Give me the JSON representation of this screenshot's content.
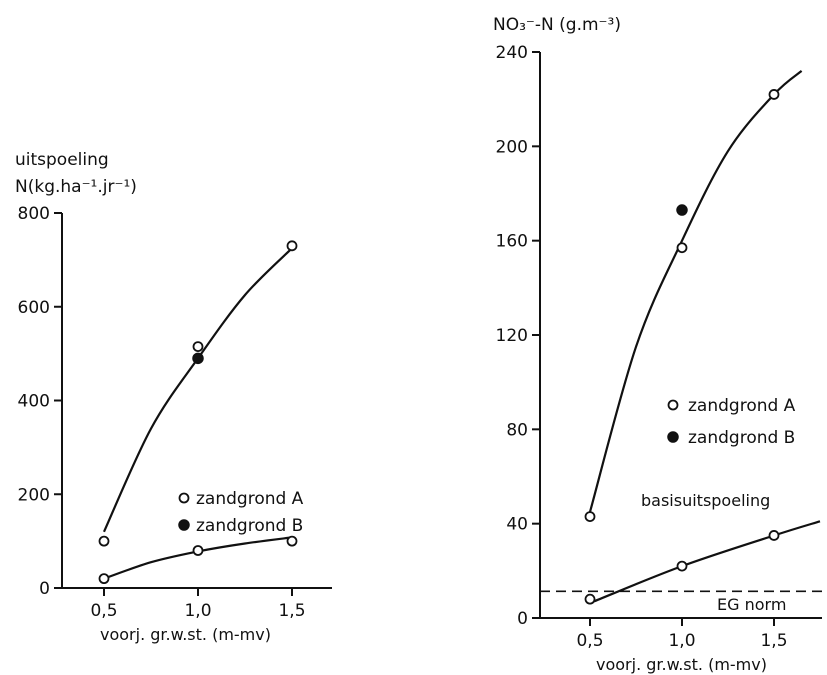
{
  "chart_data": [
    {
      "type": "scatter",
      "ylabel_line1": "uitspoeling",
      "ylabel_line2": "N(kg.ha⁻¹.jr⁻¹)",
      "xlabel": "voorj. gr.w.st. (m-mv)",
      "xlim": [
        0.25,
        1.75
      ],
      "ylim": [
        0,
        800
      ],
      "xticks": [
        "0,5",
        "1,0",
        "1,5"
      ],
      "yticks": [
        "0",
        "200",
        "400",
        "600",
        "800"
      ],
      "legend": [
        {
          "label": "zandgrond A",
          "marker": "open-circle"
        },
        {
          "label": "zandgrond B",
          "marker": "filled-circle"
        }
      ],
      "series": [
        {
          "marker": "open-circle",
          "x": [
            0.5,
            1.0,
            1.5
          ],
          "y": [
            100,
            515,
            730
          ]
        },
        {
          "marker": "filled-circle",
          "x": [
            1.0
          ],
          "y": [
            490
          ]
        },
        {
          "marker": "open-circle",
          "x": [
            0.5,
            1.0,
            1.5
          ],
          "y": [
            20,
            80,
            100
          ]
        }
      ],
      "curves": [
        {
          "x": [
            0.5,
            0.75,
            1.0,
            1.25,
            1.5
          ],
          "y": [
            120,
            340,
            490,
            625,
            725
          ]
        },
        {
          "x": [
            0.5,
            0.75,
            1.0,
            1.25,
            1.5
          ],
          "y": [
            20,
            55,
            78,
            95,
            108
          ]
        }
      ]
    },
    {
      "type": "scatter",
      "ylabel": "NO₃⁻-N (g.m⁻³)",
      "xlabel": "voorj. gr.w.st. (m-mv)",
      "xlim": [
        0.25,
        1.75
      ],
      "ylim": [
        0,
        240
      ],
      "xticks": [
        "0,5",
        "1,0",
        "1,5"
      ],
      "yticks": [
        "0",
        "40",
        "80",
        "120",
        "160",
        "200",
        "240"
      ],
      "legend": [
        {
          "label": "zandgrond A",
          "marker": "open-circle"
        },
        {
          "label": "zandgrond B",
          "marker": "filled-circle"
        }
      ],
      "annotations": [
        "basisuitspoeling",
        "EG norm"
      ],
      "eg_norm": 11.3,
      "series": [
        {
          "marker": "open-circle",
          "x": [
            0.5,
            1.0,
            1.5
          ],
          "y": [
            43,
            157,
            222
          ]
        },
        {
          "marker": "filled-circle",
          "x": [
            1.0
          ],
          "y": [
            173
          ]
        },
        {
          "marker": "open-circle",
          "x": [
            0.5,
            1.0,
            1.5
          ],
          "y": [
            8,
            22,
            35
          ]
        }
      ],
      "curves": [
        {
          "x": [
            0.5,
            0.75,
            1.0,
            1.25,
            1.5,
            1.65
          ],
          "y": [
            45,
            115,
            160,
            198,
            222,
            232
          ]
        },
        {
          "x": [
            0.52,
            1.0,
            1.5,
            1.75
          ],
          "y": [
            7,
            22,
            35,
            41
          ]
        }
      ]
    }
  ]
}
